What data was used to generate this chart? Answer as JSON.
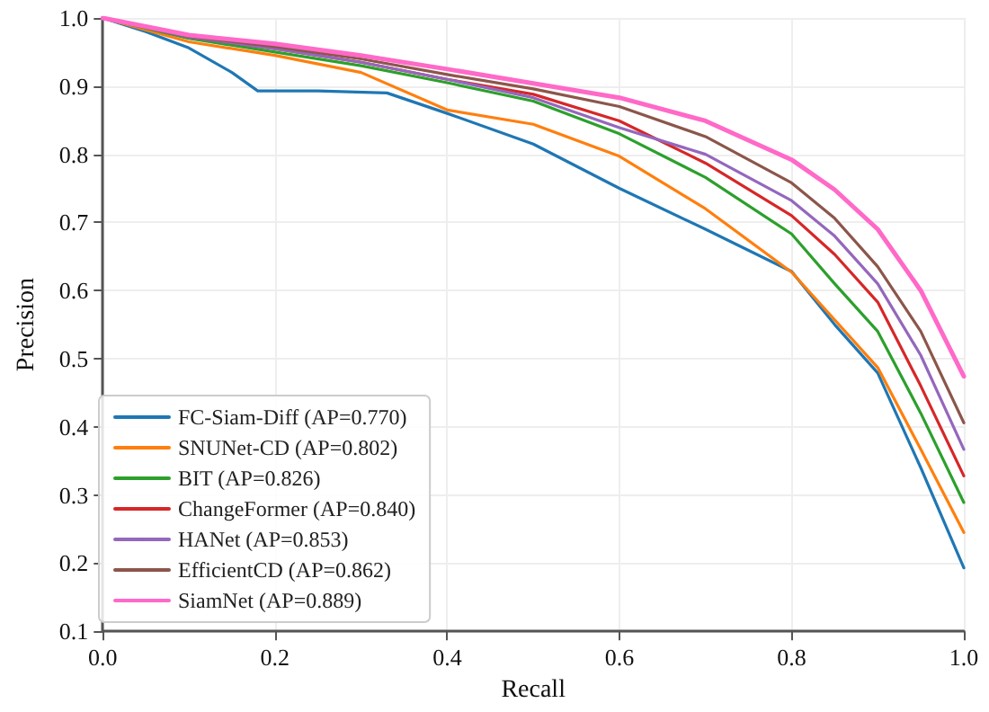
{
  "chart_data": {
    "type": "line",
    "xlabel": "Recall",
    "ylabel": "Precision",
    "x": [
      0,
      0.1,
      0.2,
      0.3,
      0.4,
      0.5,
      0.6,
      0.7,
      0.8,
      0.85,
      0.9,
      0.95,
      1.0
    ],
    "series": [
      {
        "name": "FC-Siam-Diff (AP=0.770)",
        "color": "#1f77b4",
        "x": [
          0,
          0.05,
          0.1,
          0.15,
          0.18,
          0.25,
          0.33,
          0.4,
          0.5,
          0.6,
          0.7,
          0.8,
          0.85,
          0.9,
          0.95,
          1.0
        ],
        "values": [
          1.0,
          0.98,
          0.956,
          0.92,
          0.893,
          0.893,
          0.89,
          0.86,
          0.815,
          0.75,
          0.69,
          0.628,
          0.55,
          0.479,
          0.34,
          0.193
        ]
      },
      {
        "name": "SNUNet-CD (AP=0.802)",
        "color": "#ff7f0e",
        "values": [
          1.0,
          0.965,
          0.945,
          0.92,
          0.865,
          0.844,
          0.797,
          0.72,
          0.627,
          0.557,
          0.487,
          0.367,
          0.245
        ]
      },
      {
        "name": "BIT (AP=0.826)",
        "color": "#2ca02c",
        "values": [
          1.0,
          0.97,
          0.95,
          0.93,
          0.905,
          0.878,
          0.83,
          0.766,
          0.683,
          0.61,
          0.54,
          0.42,
          0.289
        ]
      },
      {
        "name": "ChangeFormer (AP=0.840)",
        "color": "#d62728",
        "values": [
          1.0,
          0.972,
          0.955,
          0.935,
          0.91,
          0.888,
          0.849,
          0.787,
          0.71,
          0.653,
          0.583,
          0.46,
          0.328
        ]
      },
      {
        "name": "HANet (AP=0.853)",
        "color": "#9467bd",
        "values": [
          1.0,
          0.972,
          0.955,
          0.935,
          0.91,
          0.883,
          0.839,
          0.8,
          0.732,
          0.68,
          0.61,
          0.505,
          0.367
        ]
      },
      {
        "name": "EfficientCD (AP=0.862)",
        "color": "#8c564b",
        "values": [
          1.0,
          0.973,
          0.958,
          0.94,
          0.917,
          0.896,
          0.87,
          0.826,
          0.758,
          0.706,
          0.635,
          0.54,
          0.406
        ]
      },
      {
        "name": "SiamNet (AP=0.889)",
        "color": "#ff69c8",
        "values": [
          1.0,
          0.975,
          0.962,
          0.945,
          0.925,
          0.904,
          0.883,
          0.849,
          0.792,
          0.748,
          0.69,
          0.6,
          0.474
        ]
      }
    ],
    "xlim": [
      0,
      1
    ],
    "xticks": [
      {
        "value": 0,
        "label": "0.0"
      },
      0.2,
      0.4,
      0.6,
      0.8,
      {
        "value": 1,
        "label": "1.0"
      }
    ],
    "ylim": [
      0.1,
      1
    ],
    "yticks": [
      0.1,
      0.2,
      0.3,
      0.4,
      0.5,
      0.6,
      0.7,
      0.8,
      0.9,
      {
        "value": 1,
        "label": "1.0"
      }
    ],
    "grid": true,
    "legend": "bottom left",
    "marker": "none",
    "line_style": "solid"
  }
}
